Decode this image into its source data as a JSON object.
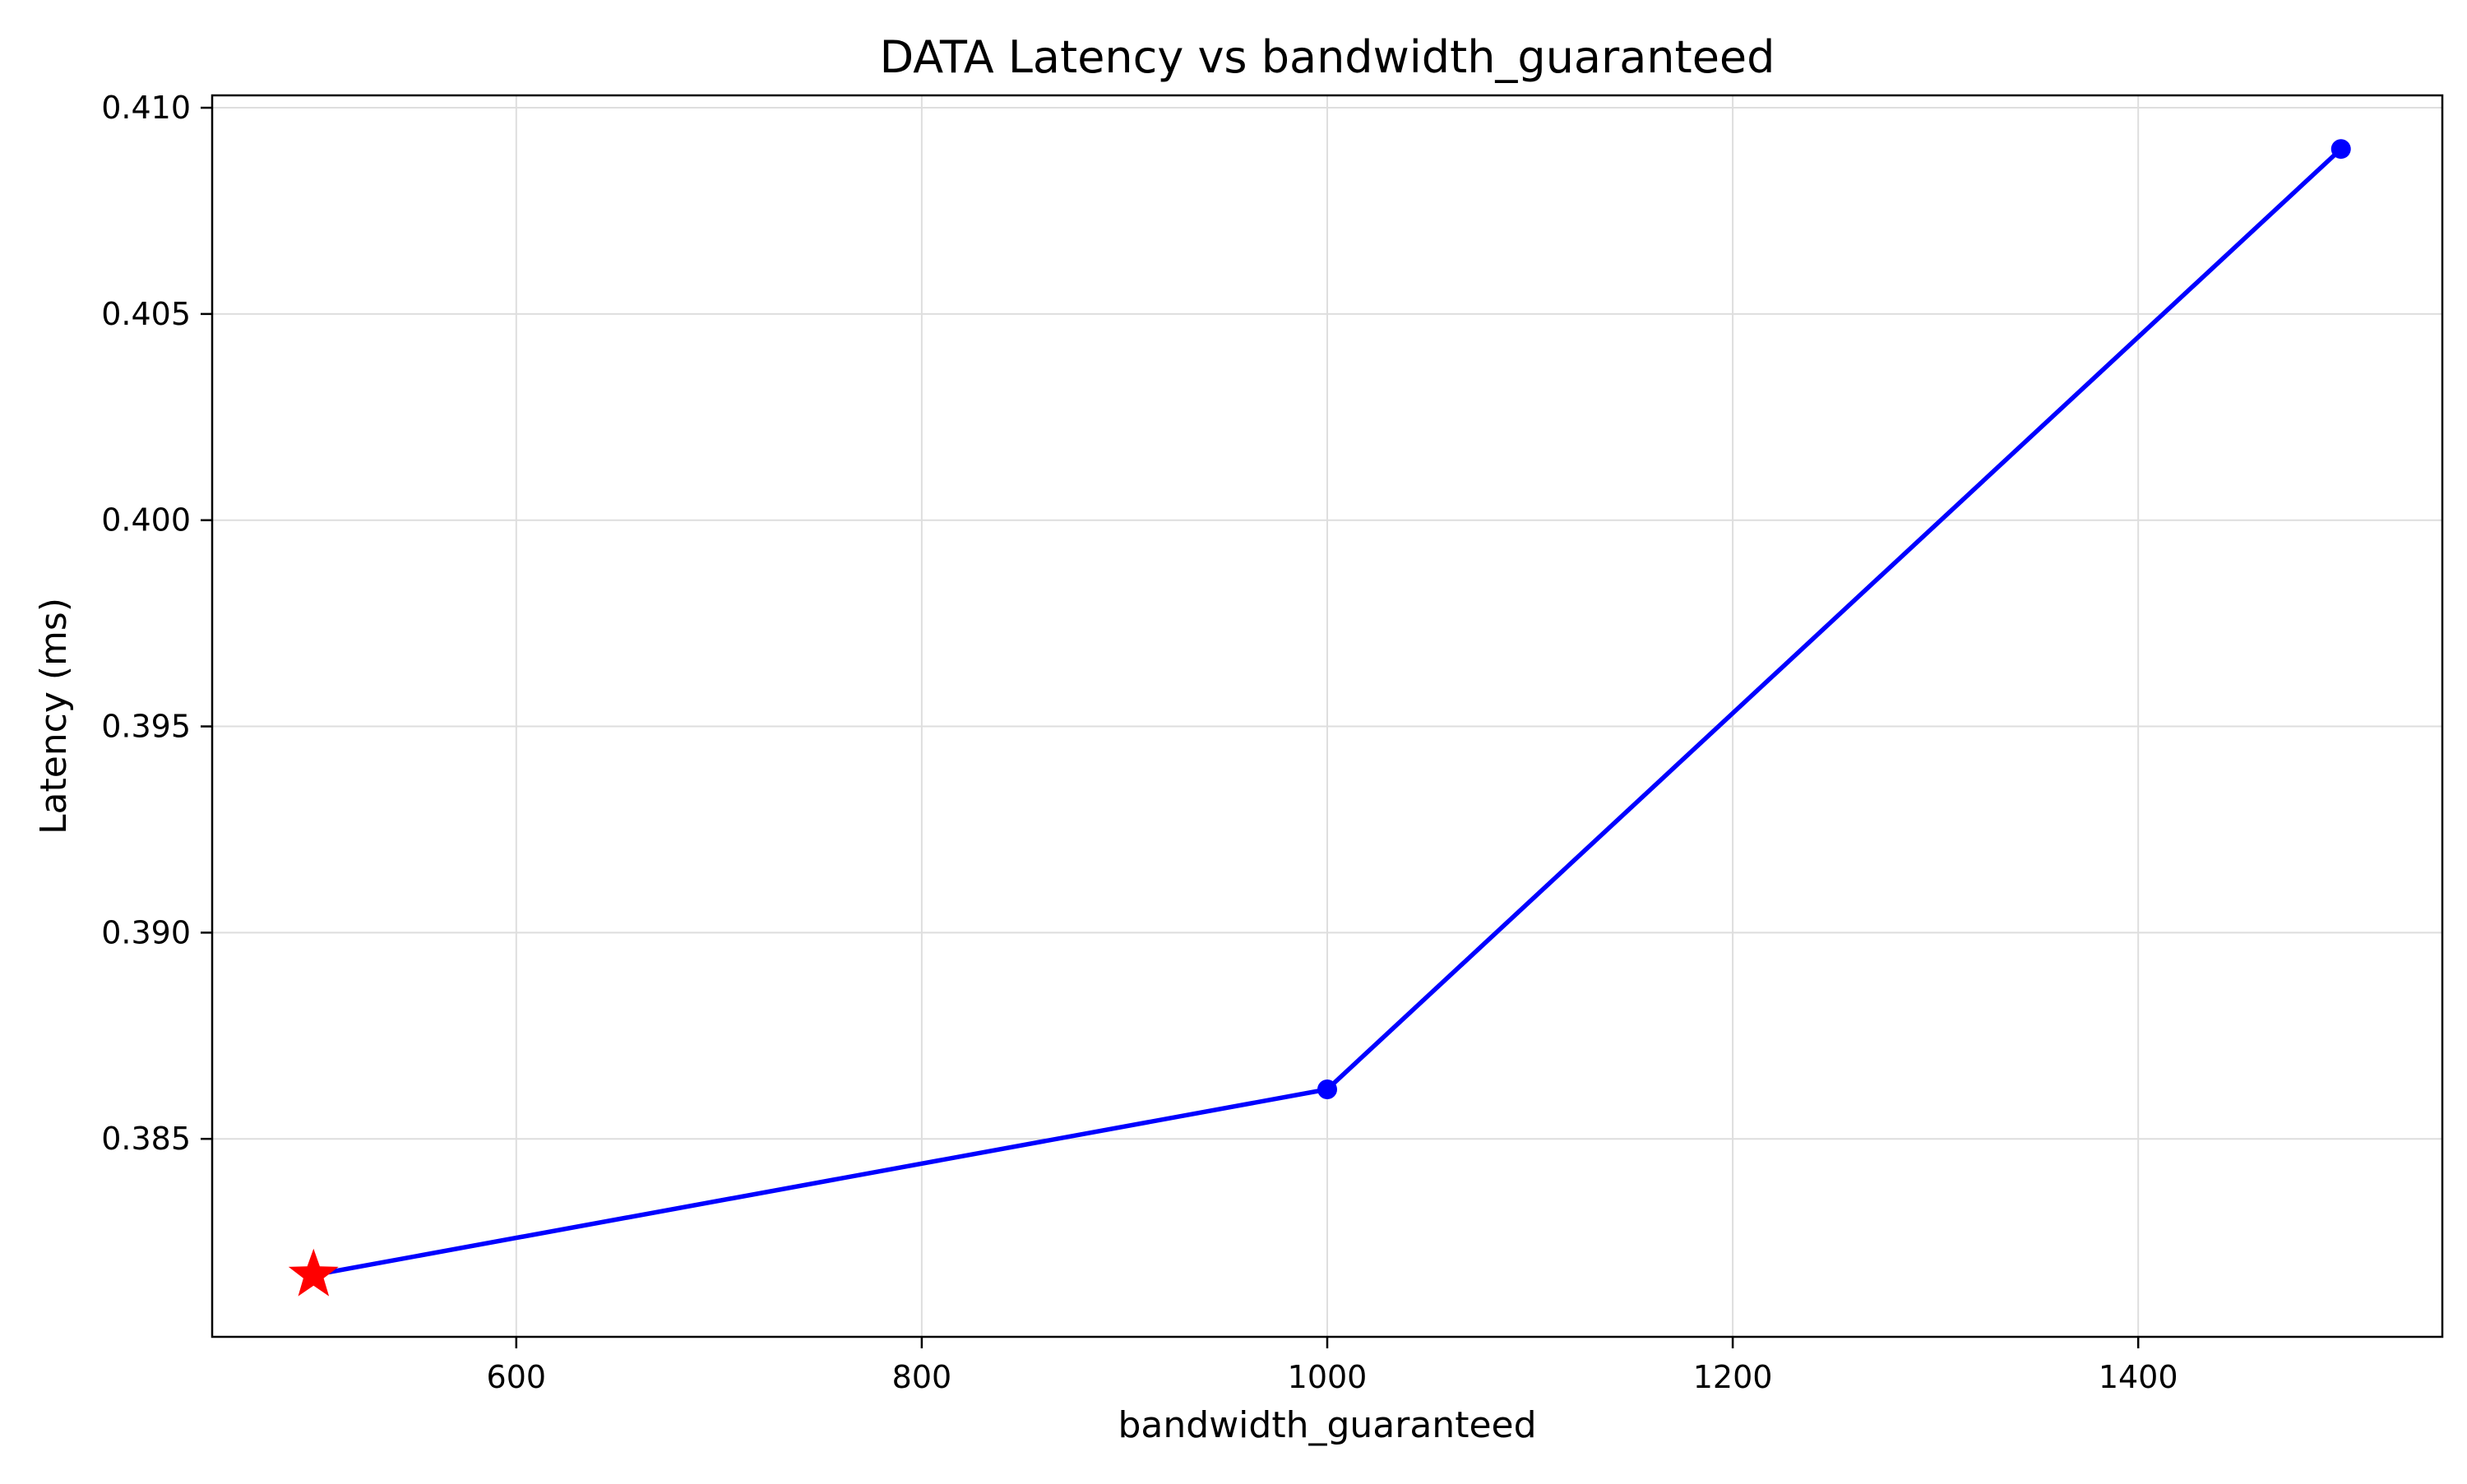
{
  "chart_data": {
    "type": "line",
    "title": "DATA Latency vs bandwidth_guaranteed",
    "xlabel": "bandwidth_guaranteed",
    "ylabel": "Latency (ms)",
    "xlim": [
      450,
      1550
    ],
    "ylim": [
      0.3802,
      0.4103
    ],
    "xticks": [
      600,
      800,
      1000,
      1200,
      1400
    ],
    "xtick_labels": [
      "600",
      "800",
      "1000",
      "1200",
      "1400"
    ],
    "yticks": [
      0.385,
      0.39,
      0.395,
      0.4,
      0.405,
      0.41
    ],
    "ytick_labels": [
      "0.385",
      "0.390",
      "0.395",
      "0.400",
      "0.405",
      "0.410"
    ],
    "grid": true,
    "series": [
      {
        "x": [
          500,
          1000,
          1500
        ],
        "y": [
          0.3817,
          0.3862,
          0.409
        ],
        "color": "#0000ff",
        "marker": "circle"
      }
    ],
    "highlight": {
      "x": 500,
      "y": 0.3817,
      "marker": "star",
      "color": "#ff0000"
    }
  }
}
